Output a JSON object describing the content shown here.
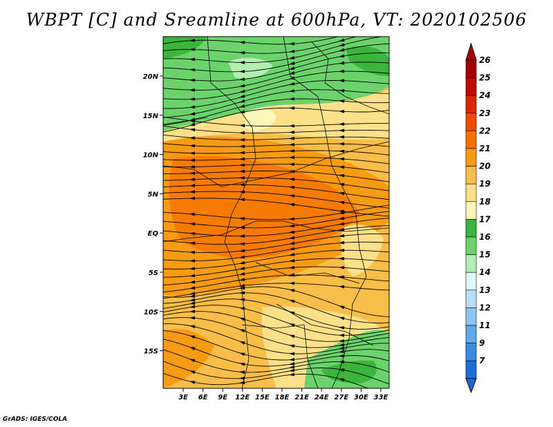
{
  "title": "WBPT [C] and Sreamline at 600hPa, VT: 2020102506",
  "credit": "GrADS: IGES/COLA",
  "map": {
    "lon_labels": [
      "3E",
      "6E",
      "9E",
      "12E",
      "15E",
      "18E",
      "21E",
      "24E",
      "27E",
      "30E",
      "33E"
    ],
    "lat_labels": [
      "20N",
      "15N",
      "10N",
      "5N",
      "EQ",
      "5S",
      "10S",
      "15S"
    ]
  },
  "colorbar": {
    "levels": [
      {
        "label": "26",
        "color": "#a50000"
      },
      {
        "label": "25",
        "color": "#c00a00"
      },
      {
        "label": "24",
        "color": "#dc2800"
      },
      {
        "label": "23",
        "color": "#ef4a00"
      },
      {
        "label": "22",
        "color": "#f57000"
      },
      {
        "label": "21",
        "color": "#f79a14"
      },
      {
        "label": "20",
        "color": "#f9be4a"
      },
      {
        "label": "19",
        "color": "#fde08a"
      },
      {
        "label": "18",
        "color": "#fcf6b8"
      },
      {
        "label": "17",
        "color": "#3bb53b"
      },
      {
        "label": "16",
        "color": "#6cd26c"
      },
      {
        "label": "15",
        "color": "#b2eeb2"
      },
      {
        "label": "14",
        "color": "#e2f8f8"
      },
      {
        "label": "13",
        "color": "#b8def8"
      },
      {
        "label": "12",
        "color": "#8cc4f4"
      },
      {
        "label": "11",
        "color": "#5ea8ec"
      },
      {
        "label": "9",
        "color": "#3a8ce4"
      },
      {
        "label": "7",
        "color": "#1e6ed8"
      }
    ],
    "top_color": "#a50000",
    "bottom_color": "#1a64dc"
  }
}
